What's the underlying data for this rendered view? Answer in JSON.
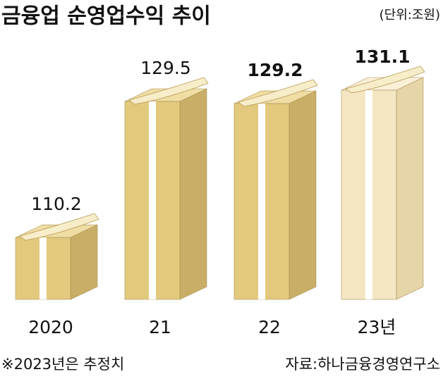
{
  "chart_data": {
    "type": "box3d",
    "title": "금융업 순영업수익 추이",
    "unit": "(단위:조원)",
    "categories": [
      "2020",
      "21",
      "22",
      "23년"
    ],
    "values": [
      110.2,
      129.5,
      129.2,
      131.1
    ],
    "value_label_bold": [
      false,
      false,
      true,
      true
    ],
    "colors": [
      "#e3c97d",
      "#e3c97d",
      "#e3c97d",
      "#f4e6c3"
    ],
    "side_colors": [
      "#c8ae66",
      "#c8ae66",
      "#c8ae66",
      "#e6d5a8"
    ],
    "top_colors": [
      "#efdda3",
      "#efdda3",
      "#efdda3",
      "#faf0d8"
    ],
    "footnote": "※2023년은 추정치",
    "source": "자료:하나금융경영연구소"
  }
}
